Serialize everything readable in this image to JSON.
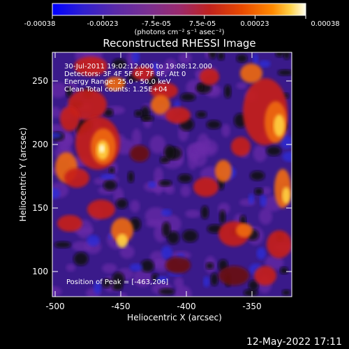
{
  "colorbar": {
    "tick_labels": [
      "-0.00038",
      "-0.00023",
      "-7.5e-05",
      "7.5e-05",
      "0.00023",
      "0.00038"
    ],
    "unit_label": "(photons cm⁻² s⁻¹ asec⁻²)",
    "colors": [
      "#0000ff",
      "#2f1fd0",
      "#5a2aa8",
      "#7a2f90",
      "#9a2a6e",
      "#c0221e",
      "#e84a00",
      "#ff8a00",
      "#ffd24a",
      "#fffff0"
    ]
  },
  "title": "Reconstructed RHESSI Image",
  "info": {
    "line1": "30-Jul-2011 19:02:12.000 to 19:08:12.000",
    "line2": "Detectors: 3F 4F 5F 6F 7F 8F, Att 0",
    "line3": "Energy Range: 25.0 - 50.0 keV",
    "line4": "Clean     Total counts: 1.25E+04",
    "peak": "Position of Peak = [-463,206]"
  },
  "axes": {
    "xlabel": "Heliocentric X (arcsec)",
    "ylabel": "Heliocentric Y (arcsec)",
    "xticks": [
      "-500",
      "-450",
      "-400",
      "-350"
    ],
    "yticks": [
      "250",
      "200",
      "150",
      "100"
    ],
    "xlim": [
      -500,
      -318
    ],
    "ylim": [
      80,
      272
    ]
  },
  "footer": {
    "timestamp": "12-May-2022 17:11"
  },
  "image_palette": {
    "deep_purple": "#3a1a8a",
    "purple": "#6a2aa8",
    "black": "#120808",
    "dark_red": "#6a0a10",
    "red": "#c8201a",
    "orange": "#f06a10",
    "yellow": "#ffd040",
    "white": "#ffffe0",
    "blue": "#2a2ad8"
  }
}
